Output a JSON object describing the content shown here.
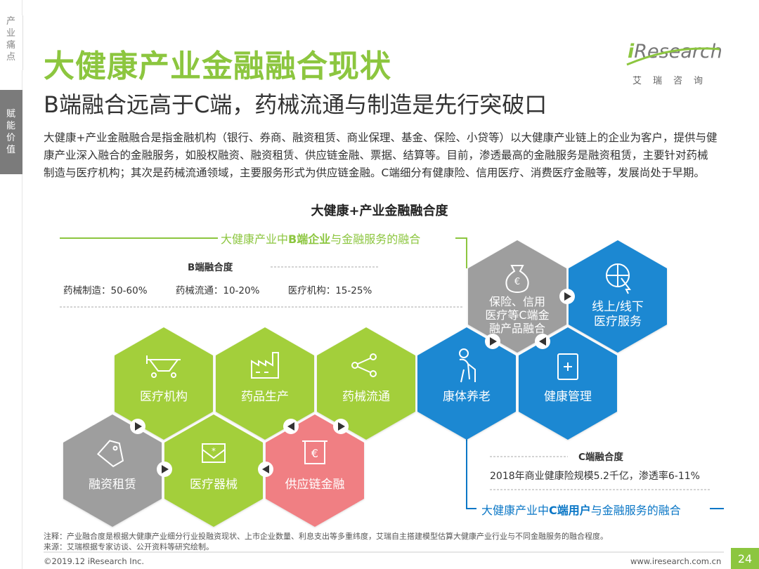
{
  "sidebar": {
    "tabs": [
      {
        "label": "产业痛点",
        "chars": [
          "产",
          "业",
          "痛",
          "点"
        ]
      },
      {
        "label": "赋能价值",
        "chars": [
          "赋",
          "能",
          "价",
          "值"
        ]
      }
    ]
  },
  "header": {
    "title": "大健康产业金融融合现状",
    "subtitle": "B端融合远高于C端，药械流通与制造是先行突破口",
    "logo_text_a": "i",
    "logo_text_b": "Research",
    "logo_sub": "艾瑞咨询"
  },
  "intro": "大健康+产业金融融合是指金融机构（银行、券商、融资租赁、商业保理、基金、保险、小贷等）以大健康产业链上的企业为客户，提供与健康产业深入融合的金融服务，如股权融资、融资租赁、供应链金融、票据、结算等。目前，渗透最高的金融服务是融资租赁，主要针对药械制造与医疗机构；其次是药械流通领域，主要服务形式为供应链金融。C端细分有健康险、信用医疗、消费医疗金融等，发展尚处于早期。",
  "diagram": {
    "title": "大健康+产业金融融合度",
    "b_banner": {
      "pre": "大健康产业中",
      "bold": "B端企业",
      "post": "与金融服务的融合"
    },
    "c_banner": {
      "pre": "大健康产业中",
      "bold": "C端用户",
      "post": "与金融服务的融合"
    },
    "b_degree": {
      "title": "B端融合度",
      "items": [
        "药械制造：50-60%",
        "药械流通：10-20%",
        "医疗机构：15-25%"
      ]
    },
    "c_degree": {
      "title": "C端融合度",
      "text": "2018年商业健康险规模5.2千亿，渗透率6-11%"
    },
    "hexagons": [
      {
        "id": "medical-institution",
        "label": "医疗机构",
        "color": "#a3cf3a",
        "icon": "hospital-bed-icon"
      },
      {
        "id": "drug-production",
        "label": "药品生产",
        "color": "#a3cf3a",
        "icon": "factory-icon"
      },
      {
        "id": "drug-circulation",
        "label": "药械流通",
        "color": "#a3cf3a",
        "icon": "share-icon"
      },
      {
        "id": "elderly-care",
        "label": "康体养老",
        "color": "#1e88d2",
        "icon": "elderly-icon"
      },
      {
        "id": "health-management",
        "label": "健康管理",
        "color": "#1e88d2",
        "icon": "health-book-icon"
      },
      {
        "id": "insurance-credit",
        "label_lines": [
          "保险、信用",
          "医疗等C端金",
          "融产品融合"
        ],
        "color": "#9e9e9e",
        "icon": "money-bag-icon"
      },
      {
        "id": "online-offline",
        "label_lines": [
          "线上/线下",
          "医疗服务"
        ],
        "color": "#1e88d2",
        "icon": "cursor-globe-icon"
      },
      {
        "id": "financing-lease",
        "label": "融资租赁",
        "color": "#9e9e9e",
        "icon": "price-tag-icon"
      },
      {
        "id": "medical-device",
        "label": "医疗器械",
        "color": "#a3cf3a",
        "icon": "envelope-icon"
      },
      {
        "id": "supply-chain-finance",
        "label": "供应链金融",
        "color": "#f07f83",
        "icon": "euro-board-icon"
      }
    ]
  },
  "notes": {
    "line1": "注释：产业融合度是根据大健康产业细分行业投融资现状、上市企业数量、利息支出等多重纬度，艾瑞自主搭建模型估算大健康产业行业与不同金融服务的融合程度。",
    "line2": "来源：艾瑞根据专家访谈、公开资料等研究绘制。"
  },
  "footer": {
    "copyright": "©2019.12 iResearch Inc.",
    "site": "www.iresearch.com.cn",
    "page": "24"
  },
  "colors": {
    "green": "#8cc63f",
    "hex_green": "#a3cf3a",
    "hex_blue": "#1e88d2",
    "hex_gray": "#9e9e9e",
    "hex_pink": "#f07f83"
  }
}
